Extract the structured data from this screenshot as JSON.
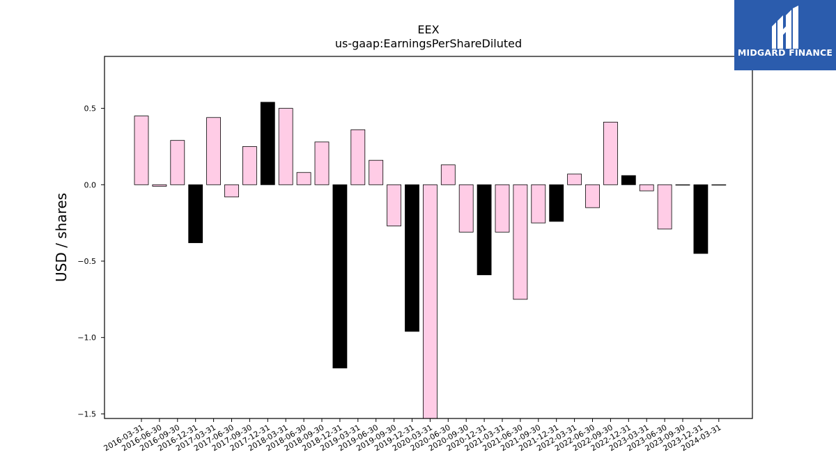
{
  "brand": {
    "name": "MIDGARD FINANCE"
  },
  "chart_data": {
    "type": "bar",
    "title": "EEX",
    "subtitle": "us-gaap:EarningsPerShareDiluted",
    "xlabel": "",
    "ylabel": "USD / shares",
    "ylim": [
      -1.53,
      0.84
    ],
    "yticks": [
      0.5,
      0.0,
      -0.5,
      -1.0,
      -1.5
    ],
    "ytick_labels": [
      "0.5",
      "0.0",
      "−0.5",
      "−1.0",
      "−1.5"
    ],
    "grid": false,
    "legend": "none",
    "colors": {
      "quarterly": "#ffcce6",
      "annual": "#000000",
      "edge": "#000000"
    },
    "categories": [
      "2016-03-31",
      "2016-06-30",
      "2016-09-30",
      "2016-12-31",
      "2017-03-31",
      "2017-06-30",
      "2017-09-30",
      "2017-12-31",
      "2018-03-31",
      "2018-06-30",
      "2018-09-30",
      "2018-12-31",
      "2019-03-31",
      "2019-06-30",
      "2019-09-30",
      "2019-12-31",
      "2020-03-31",
      "2020-06-30",
      "2020-09-30",
      "2020-12-31",
      "2021-03-31",
      "2021-06-30",
      "2021-09-30",
      "2021-12-31",
      "2022-03-31",
      "2022-06-30",
      "2022-09-30",
      "2022-12-31",
      "2023-03-31",
      "2023-06-30",
      "2023-09-30",
      "2023-12-31",
      "2024-03-31"
    ],
    "values": [
      0.45,
      -0.01,
      0.29,
      -0.38,
      0.44,
      -0.08,
      0.25,
      0.54,
      0.5,
      0.08,
      0.28,
      -1.2,
      0.36,
      0.16,
      -0.27,
      -0.96,
      -1.53,
      0.13,
      -0.31,
      -0.59,
      -0.31,
      -0.75,
      -0.25,
      -0.24,
      0.07,
      -0.15,
      0.41,
      0.06,
      -0.04,
      -0.29,
      0.0,
      -0.45,
      0.0
    ],
    "annual": [
      false,
      false,
      false,
      true,
      false,
      false,
      false,
      true,
      false,
      false,
      false,
      true,
      false,
      false,
      false,
      true,
      false,
      false,
      false,
      true,
      false,
      false,
      false,
      true,
      false,
      false,
      false,
      true,
      false,
      false,
      false,
      true,
      false
    ]
  }
}
